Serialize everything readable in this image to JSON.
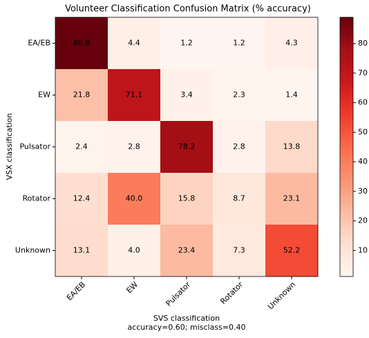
{
  "chart_data": {
    "type": "heatmap",
    "title": "Volunteer Classification Confusion Matrix (% accuracy)",
    "xlabel": "SVS classification",
    "xlabel_note": "accuracy=0.60; misclass=0.40",
    "ylabel": "VSX classification",
    "x_categories": [
      "EA/EB",
      "EW",
      "Pulsator",
      "Rotator",
      "Unknown"
    ],
    "y_categories": [
      "EA/EB",
      "EW",
      "Pulsator",
      "Rotator",
      "Unknown"
    ],
    "values": [
      [
        88.9,
        4.4,
        1.2,
        1.2,
        4.3
      ],
      [
        21.8,
        71.1,
        3.4,
        2.3,
        1.4
      ],
      [
        2.4,
        2.8,
        78.2,
        2.8,
        13.8
      ],
      [
        12.4,
        40.0,
        15.8,
        8.7,
        23.1
      ],
      [
        13.1,
        4.0,
        23.4,
        7.3,
        52.2
      ]
    ],
    "value_labels": [
      [
        "88.9",
        "4.4",
        "1.2",
        "1.2",
        "4.3"
      ],
      [
        "21.8",
        "71.1",
        "3.4",
        "2.3",
        "1.4"
      ],
      [
        "2.4",
        "2.8",
        "78.2",
        "2.8",
        "13.8"
      ],
      [
        "12.4",
        "40.0",
        "15.8",
        "8.7",
        "23.1"
      ],
      [
        "13.1",
        "4.0",
        "23.4",
        "7.3",
        "52.2"
      ]
    ],
    "colormap": "Reds",
    "clim": [
      1.2,
      88.9
    ],
    "colorbar_ticks": [
      10,
      20,
      30,
      40,
      50,
      60,
      70,
      80
    ]
  }
}
